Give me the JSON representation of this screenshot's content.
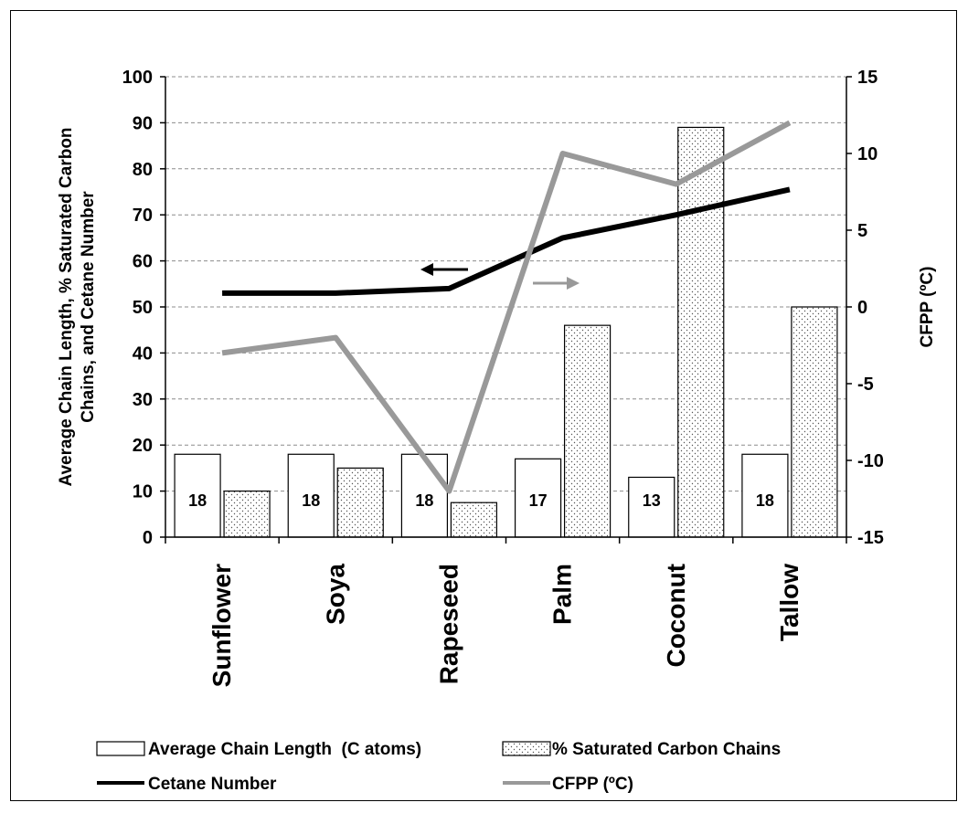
{
  "chart_data": {
    "type": "bar",
    "categories": [
      "Sunflower",
      "Soya",
      "Rapeseed",
      "Palm",
      "Coconut",
      "Tallow"
    ],
    "bar_series": [
      {
        "name": "Average Chain Length  (C atoms)",
        "values": [
          18,
          18,
          18,
          17,
          13,
          18
        ],
        "pattern": "white",
        "labels": [
          "18",
          "18",
          "18",
          "17",
          "13",
          "18"
        ]
      },
      {
        "name": "% Saturated Carbon Chains",
        "values": [
          10,
          15,
          7.5,
          46,
          89,
          50
        ],
        "pattern": "dotted"
      }
    ],
    "line_series": [
      {
        "name": "Cetane Number",
        "values": [
          53,
          53,
          54,
          65,
          70,
          75.5
        ],
        "axis": "left",
        "color": "#000000"
      },
      {
        "name": "CFPP (ºC)",
        "values": [
          -3,
          -2,
          -12,
          10,
          8,
          12
        ],
        "axis": "right",
        "color": "#999999"
      }
    ],
    "ylabel_left_line1": "Average Chain Length, % Saturated Carbon",
    "ylabel_left_line2": "Chains, and Cetane Number",
    "ylabel_right": "CFPP (ºC)",
    "ylim_left": [
      0,
      100
    ],
    "ylim_right": [
      -15,
      15
    ],
    "yticks_left": [
      "0",
      "10",
      "20",
      "30",
      "40",
      "50",
      "60",
      "70",
      "80",
      "90",
      "100"
    ],
    "yticks_right": [
      "-15",
      "-10",
      "-5",
      "0",
      "5",
      "10",
      "15"
    ],
    "grid": "horizontal dashed",
    "legend_position": "bottom"
  }
}
